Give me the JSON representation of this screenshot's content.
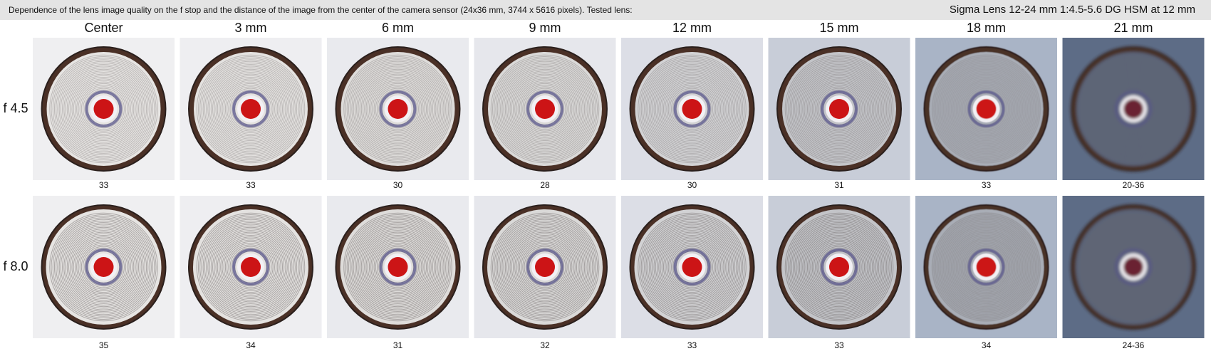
{
  "header": {
    "title": "Dependence of the lens image quality on the f stop and the distance of the image from the center of the camera sensor (24x36 mm, 3744 x 5616 pixels).  Tested lens:",
    "lens": "Sigma Lens 12-24 mm 1:4.5-5.6 DG HSM at 12 mm"
  },
  "columns": [
    "Center",
    "3 mm",
    "6 mm",
    "9 mm",
    "12 mm",
    "15 mm",
    "18 mm",
    "21 mm"
  ],
  "rows": [
    {
      "label": "f 4.5",
      "scores": [
        "33",
        "33",
        "30",
        "28",
        "30",
        "31",
        "33",
        "20-36"
      ]
    },
    {
      "label": "f 8.0",
      "scores": [
        "35",
        "34",
        "31",
        "32",
        "33",
        "33",
        "34",
        "24-36"
      ]
    }
  ]
}
